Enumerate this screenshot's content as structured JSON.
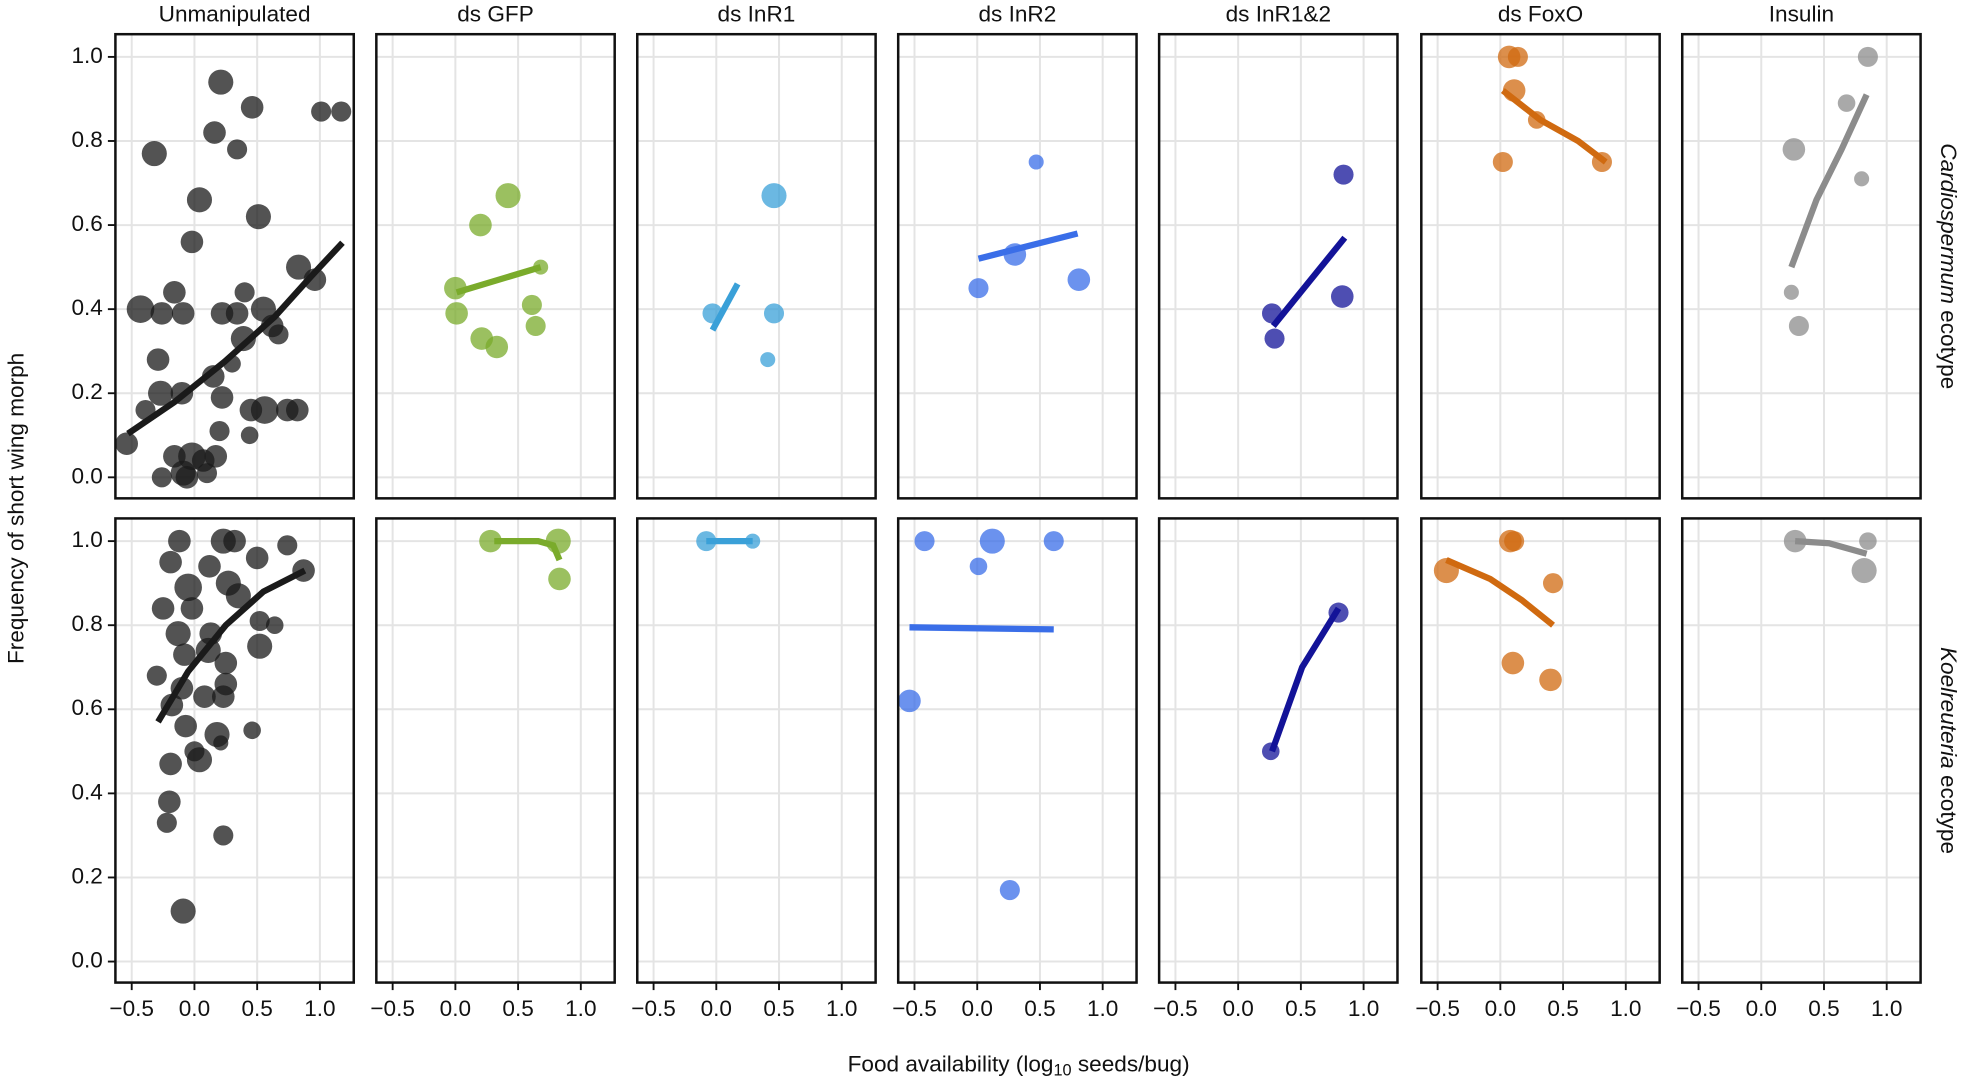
{
  "chart_data": {
    "type": "scatter",
    "xlabel": {
      "text": "Food availability (log",
      "sub": "10",
      "rest": " seeds/bug)"
    },
    "ylabel": "Frequency of short wing morph",
    "columns": [
      "Unmanipulated",
      "ds GFP",
      "ds InR1",
      "ds InR2",
      "ds InR1&2",
      "ds FoxO",
      "Insulin"
    ],
    "xlim": [
      -0.63,
      1.27
    ],
    "xticks": [
      {
        "value": -0.5,
        "label": "−0.5"
      },
      {
        "value": 0,
        "label": "0.0"
      },
      0.5,
      {
        "value": 1,
        "label": "1.0"
      }
    ],
    "ylim": [
      -0.05,
      1.054
    ],
    "yticks": [
      {
        "value": 0,
        "label": "0.0"
      },
      0.2,
      0.4,
      0.6,
      0.8,
      {
        "value": 1,
        "label": "1.0"
      }
    ],
    "grid": true,
    "rows": [
      {
        "label_italic": "Cardiospermum",
        "label": " ecotype",
        "panels": [
          {
            "color": "#1a1a1a",
            "x": [
              0.21,
              0.46,
              0.16,
              0.34,
              -0.32,
              1.01,
              1.17,
              0.04,
              -0.02,
              0.51,
              0.83,
              0.96,
              -0.43,
              -0.16,
              -0.26,
              -0.09,
              0.22,
              0.34,
              0.4,
              0.55,
              0.62,
              0.39,
              0.67,
              -0.29,
              -0.27,
              -0.1,
              0.15,
              0.22,
              0.3,
              0.45,
              0.56,
              0.74,
              0.82,
              0.44,
              0.17,
              -0.02,
              -0.16,
              -0.26,
              -0.09,
              0.07,
              0.2,
              -0.54,
              -0.39,
              -0.06,
              0.1
            ],
            "y": [
              0.94,
              0.88,
              0.82,
              0.78,
              0.77,
              0.87,
              0.87,
              0.66,
              0.56,
              0.62,
              0.5,
              0.47,
              0.4,
              0.44,
              0.39,
              0.39,
              0.39,
              0.39,
              0.44,
              0.4,
              0.36,
              0.33,
              0.34,
              0.28,
              0.2,
              0.2,
              0.24,
              0.19,
              0.27,
              0.16,
              0.16,
              0.16,
              0.16,
              0.1,
              0.05,
              0.05,
              0.05,
              0.0,
              0.01,
              0.04,
              0.11,
              0.08,
              0.16,
              0.0,
              0.01
            ],
            "size": [
              10,
              9,
              9,
              8,
              10,
              8,
              8,
              10,
              9,
              10,
              10,
              9,
              11,
              9,
              9,
              9,
              9,
              9,
              8,
              10,
              9,
              10,
              8,
              9,
              10,
              9,
              9,
              9,
              7,
              9,
              11,
              9,
              9,
              7,
              9,
              11,
              9,
              8,
              10,
              9,
              8,
              9,
              8,
              9,
              8
            ],
            "fit_x": [
              -0.53,
              -0.16,
              0.24,
              0.64,
              0.93,
              1.18
            ],
            "fit_y": [
              0.104,
              0.179,
              0.275,
              0.382,
              0.478,
              0.558
            ]
          },
          {
            "color": "#7aab2b",
            "x": [
              0.42,
              0.2,
              0.0,
              0.01,
              0.21,
              0.33,
              0.61,
              0.64,
              0.68
            ],
            "y": [
              0.67,
              0.6,
              0.45,
              0.39,
              0.33,
              0.31,
              0.41,
              0.36,
              0.5
            ],
            "size": [
              10,
              9,
              9,
              9,
              9,
              9,
              8,
              8,
              6
            ],
            "fit_x": [
              0.01,
              0.68
            ],
            "fit_y": [
              0.44,
              0.5
            ]
          },
          {
            "color": "#3aa0d8",
            "x": [
              0.46,
              -0.03,
              0.46,
              0.41
            ],
            "y": [
              0.67,
              0.39,
              0.39,
              0.28
            ],
            "size": [
              10,
              8,
              8,
              6
            ],
            "fit_x": [
              -0.03,
              0.17
            ],
            "fit_y": [
              0.35,
              0.46
            ]
          },
          {
            "color": "#3a6ee8",
            "x": [
              0.47,
              0.3,
              0.01,
              0.81
            ],
            "y": [
              0.75,
              0.53,
              0.45,
              0.47
            ],
            "size": [
              6,
              9,
              8,
              9
            ],
            "fit_x": [
              0.01,
              0.8
            ],
            "fit_y": [
              0.52,
              0.58
            ]
          },
          {
            "color": "#131398",
            "x": [
              0.84,
              0.27,
              0.29,
              0.83
            ],
            "y": [
              0.72,
              0.39,
              0.33,
              0.43
            ],
            "size": [
              8,
              8,
              8,
              9
            ],
            "fit_x": [
              0.28,
              0.85
            ],
            "fit_y": [
              0.36,
              0.57
            ]
          },
          {
            "color": "#d06a10",
            "x": [
              0.07,
              0.14,
              0.11,
              0.29,
              0.02,
              0.81
            ],
            "y": [
              1.0,
              1.0,
              0.92,
              0.85,
              0.75,
              0.75
            ],
            "size": [
              9,
              8,
              9,
              7,
              8,
              8
            ],
            "fit_x": [
              0.02,
              0.32,
              0.62,
              0.84
            ],
            "fit_y": [
              0.92,
              0.85,
              0.8,
              0.75
            ]
          },
          {
            "color": "#8c8c8c",
            "x": [
              0.26,
              0.85,
              0.68,
              0.8,
              0.24,
              0.3
            ],
            "y": [
              0.78,
              1.0,
              0.89,
              0.71,
              0.44,
              0.36
            ],
            "size": [
              9,
              8,
              7,
              6,
              6,
              8
            ],
            "fit_x": [
              0.24,
              0.44,
              0.64,
              0.84
            ],
            "fit_y": [
              0.5,
              0.66,
              0.78,
              0.91
            ]
          }
        ]
      },
      {
        "label_italic": "Koelreuteria",
        "label": " ecotype",
        "panels": [
          {
            "color": "#1a1a1a",
            "x": [
              -0.12,
              0.23,
              0.32,
              0.74,
              0.5,
              0.12,
              -0.05,
              0.27,
              -0.19,
              0.35,
              -0.25,
              -0.02,
              0.52,
              0.64,
              0.13,
              -0.13,
              0.52,
              0.11,
              -0.08,
              0.25,
              -0.3,
              0.08,
              0.25,
              -0.1,
              0.23,
              -0.18,
              -0.07,
              0.18,
              0.46,
              0.0,
              0.04,
              0.21,
              -0.19,
              -0.2,
              -0.22,
              0.23,
              -0.09,
              0.87
            ],
            "y": [
              1.0,
              1.0,
              1.0,
              0.99,
              0.96,
              0.94,
              0.89,
              0.9,
              0.95,
              0.87,
              0.84,
              0.84,
              0.81,
              0.8,
              0.78,
              0.78,
              0.75,
              0.74,
              0.73,
              0.71,
              0.68,
              0.63,
              0.66,
              0.65,
              0.63,
              0.61,
              0.56,
              0.54,
              0.55,
              0.5,
              0.48,
              0.52,
              0.47,
              0.38,
              0.33,
              0.3,
              0.12,
              0.93
            ],
            "size": [
              9,
              10,
              9,
              8,
              9,
              9,
              11,
              10,
              9,
              10,
              9,
              9,
              8,
              7,
              9,
              10,
              10,
              10,
              9,
              9,
              8,
              9,
              9,
              9,
              9,
              9,
              9,
              10,
              7,
              8,
              10,
              6,
              9,
              9,
              8,
              8,
              10,
              9
            ],
            "fit_x": [
              -0.29,
              -0.05,
              0.25,
              0.55,
              0.88
            ],
            "fit_y": [
              0.57,
              0.69,
              0.8,
              0.88,
              0.93
            ]
          },
          {
            "color": "#7aab2b",
            "x": [
              0.28,
              0.82,
              0.83
            ],
            "y": [
              1.0,
              1.0,
              0.91
            ],
            "size": [
              9,
              10,
              9
            ],
            "fit_x": [
              0.31,
              0.66,
              0.78,
              0.83
            ],
            "fit_y": [
              1.0,
              1.0,
              0.99,
              0.955
            ]
          },
          {
            "color": "#3aa0d8",
            "x": [
              -0.08,
              0.29
            ],
            "y": [
              1.0,
              1.0
            ],
            "size": [
              8,
              6
            ],
            "fit_x": [
              -0.08,
              0.29
            ],
            "fit_y": [
              1.0,
              1.0
            ]
          },
          {
            "color": "#3a6ee8",
            "x": [
              -0.42,
              0.12,
              0.61,
              0.01,
              -0.54,
              0.26
            ],
            "y": [
              1.0,
              1.0,
              1.0,
              0.94,
              0.62,
              0.17
            ],
            "size": [
              8,
              10,
              8,
              7,
              9,
              8
            ],
            "fit_x": [
              -0.54,
              0.61
            ],
            "fit_y": [
              0.795,
              0.79
            ]
          },
          {
            "color": "#131398",
            "x": [
              0.8,
              0.26
            ],
            "y": [
              0.83,
              0.5
            ],
            "size": [
              8,
              7
            ],
            "fit_x": [
              0.27,
              0.51,
              0.8
            ],
            "fit_y": [
              0.5,
              0.7,
              0.84
            ]
          },
          {
            "color": "#d06a10",
            "x": [
              -0.43,
              0.08,
              0.11,
              0.42,
              0.1,
              0.4
            ],
            "y": [
              0.93,
              1.0,
              1.0,
              0.9,
              0.71,
              0.67
            ],
            "size": [
              10,
              9,
              8,
              8,
              9,
              9
            ],
            "fit_x": [
              -0.43,
              -0.08,
              0.17,
              0.42
            ],
            "fit_y": [
              0.955,
              0.91,
              0.86,
              0.8
            ]
          },
          {
            "color": "#8c8c8c",
            "x": [
              0.27,
              0.85,
              0.82
            ],
            "y": [
              1.0,
              1.0,
              0.93
            ],
            "size": [
              9,
              7,
              10
            ],
            "fit_x": [
              0.27,
              0.54,
              0.84
            ],
            "fit_y": [
              1.0,
              0.995,
              0.97
            ]
          }
        ]
      }
    ]
  }
}
